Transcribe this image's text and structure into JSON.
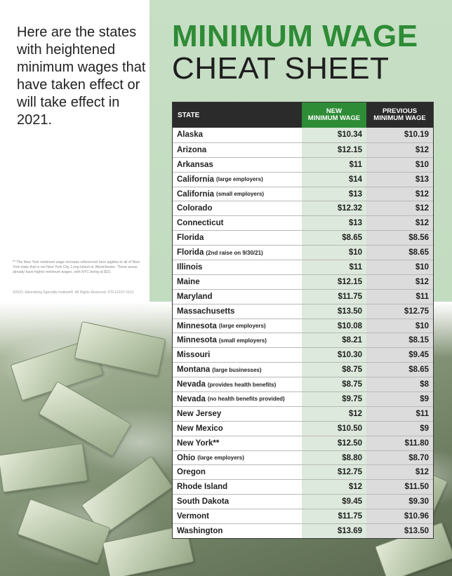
{
  "intro": "Here are the states with heightened minimum wages that have taken effect or will take effect in 2021.",
  "footnote": "** The New York minimum wage increase referenced here applies to all of New York state that is not New York City, Long Island or Westchester. Those areas already have higher minimum wages, with NYC being at $15.",
  "copyright": "©2021, Advertising Specialty Institute®. All Rights Reserved. 670-1210Y 0121",
  "title_line1": "MINIMUM WAGE",
  "title_line2": "CHEAT SHEET",
  "table": {
    "headers": {
      "state": "STATE",
      "new_line1": "NEW",
      "new_line2": "MINIMUM WAGE",
      "prev_line1": "PREVIOUS",
      "prev_line2": "MINIMUM WAGE"
    },
    "rows": [
      {
        "state": "Alaska",
        "note": "",
        "new": "$10.34",
        "prev": "$10.19"
      },
      {
        "state": "Arizona",
        "note": "",
        "new": "$12.15",
        "prev": "$12"
      },
      {
        "state": "Arkansas",
        "note": "",
        "new": "$11",
        "prev": "$10"
      },
      {
        "state": "California",
        "note": "(large employers)",
        "new": "$14",
        "prev": "$13"
      },
      {
        "state": "California",
        "note": "(small employers)",
        "new": "$13",
        "prev": "$12"
      },
      {
        "state": "Colorado",
        "note": "",
        "new": "$12.32",
        "prev": "$12"
      },
      {
        "state": "Connecticut",
        "note": "",
        "new": "$13",
        "prev": "$12"
      },
      {
        "state": "Florida",
        "note": "",
        "new": "$8.65",
        "prev": "$8.56"
      },
      {
        "state": "Florida",
        "note": "(2nd raise on 9/30/21)",
        "new": "$10",
        "prev": "$8.65"
      },
      {
        "state": "Illinois",
        "note": "",
        "new": "$11",
        "prev": "$10"
      },
      {
        "state": "Maine",
        "note": "",
        "new": "$12.15",
        "prev": "$12"
      },
      {
        "state": "Maryland",
        "note": "",
        "new": "$11.75",
        "prev": "$11"
      },
      {
        "state": "Massachusetts",
        "note": "",
        "new": "$13.50",
        "prev": "$12.75"
      },
      {
        "state": "Minnesota",
        "note": "(large employers)",
        "new": "$10.08",
        "prev": "$10"
      },
      {
        "state": "Minnesota",
        "note": "(small employers)",
        "new": "$8.21",
        "prev": "$8.15"
      },
      {
        "state": "Missouri",
        "note": "",
        "new": "$10.30",
        "prev": "$9.45"
      },
      {
        "state": "Montana",
        "note": "(large businesses)",
        "new": "$8.75",
        "prev": "$8.65"
      },
      {
        "state": "Nevada",
        "note": "(provides health benefits)",
        "new": "$8.75",
        "prev": "$8"
      },
      {
        "state": "Nevada",
        "note": "(no health benefits provided)",
        "new": "$9.75",
        "prev": "$9"
      },
      {
        "state": "New Jersey",
        "note": "",
        "new": "$12",
        "prev": "$11"
      },
      {
        "state": "New Mexico",
        "note": "",
        "new": "$10.50",
        "prev": "$9"
      },
      {
        "state": "New York**",
        "note": "",
        "new": "$12.50",
        "prev": "$11.80"
      },
      {
        "state": "Ohio",
        "note": "(large employers)",
        "new": "$8.80",
        "prev": "$8.70"
      },
      {
        "state": "Oregon",
        "note": "",
        "new": "$12.75",
        "prev": "$12"
      },
      {
        "state": "Rhode Island",
        "note": "",
        "new": "$12",
        "prev": "$11.50"
      },
      {
        "state": "South Dakota",
        "note": "",
        "new": "$9.45",
        "prev": "$9.30"
      },
      {
        "state": "Vermont",
        "note": "",
        "new": "$11.75",
        "prev": "$10.96"
      },
      {
        "state": "Washington",
        "note": "",
        "new": "$13.69",
        "prev": "$13.50"
      }
    ]
  }
}
